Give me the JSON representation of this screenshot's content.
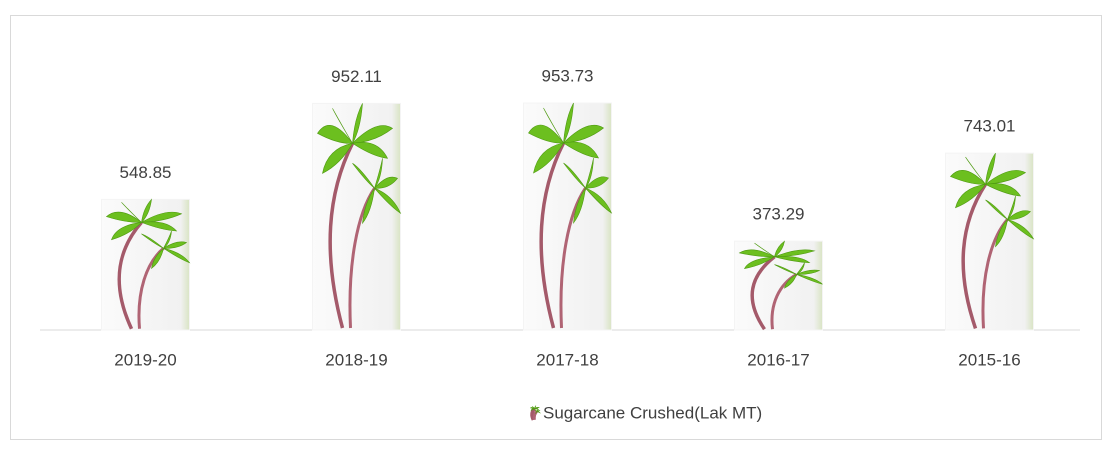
{
  "chart_data": {
    "type": "bar",
    "categories": [
      "2019-20",
      "2018-19",
      "2017-18",
      "2016-17",
      "2015-16"
    ],
    "series": [
      {
        "name": "Sugarcane Crushed(Lak MT)",
        "color": "#f4f4f4",
        "values": [
          548.85,
          952.11,
          953.73,
          373.29,
          743.01
        ]
      }
    ],
    "ylim": [
      0,
      1000
    ],
    "legend": "bottom"
  }
}
